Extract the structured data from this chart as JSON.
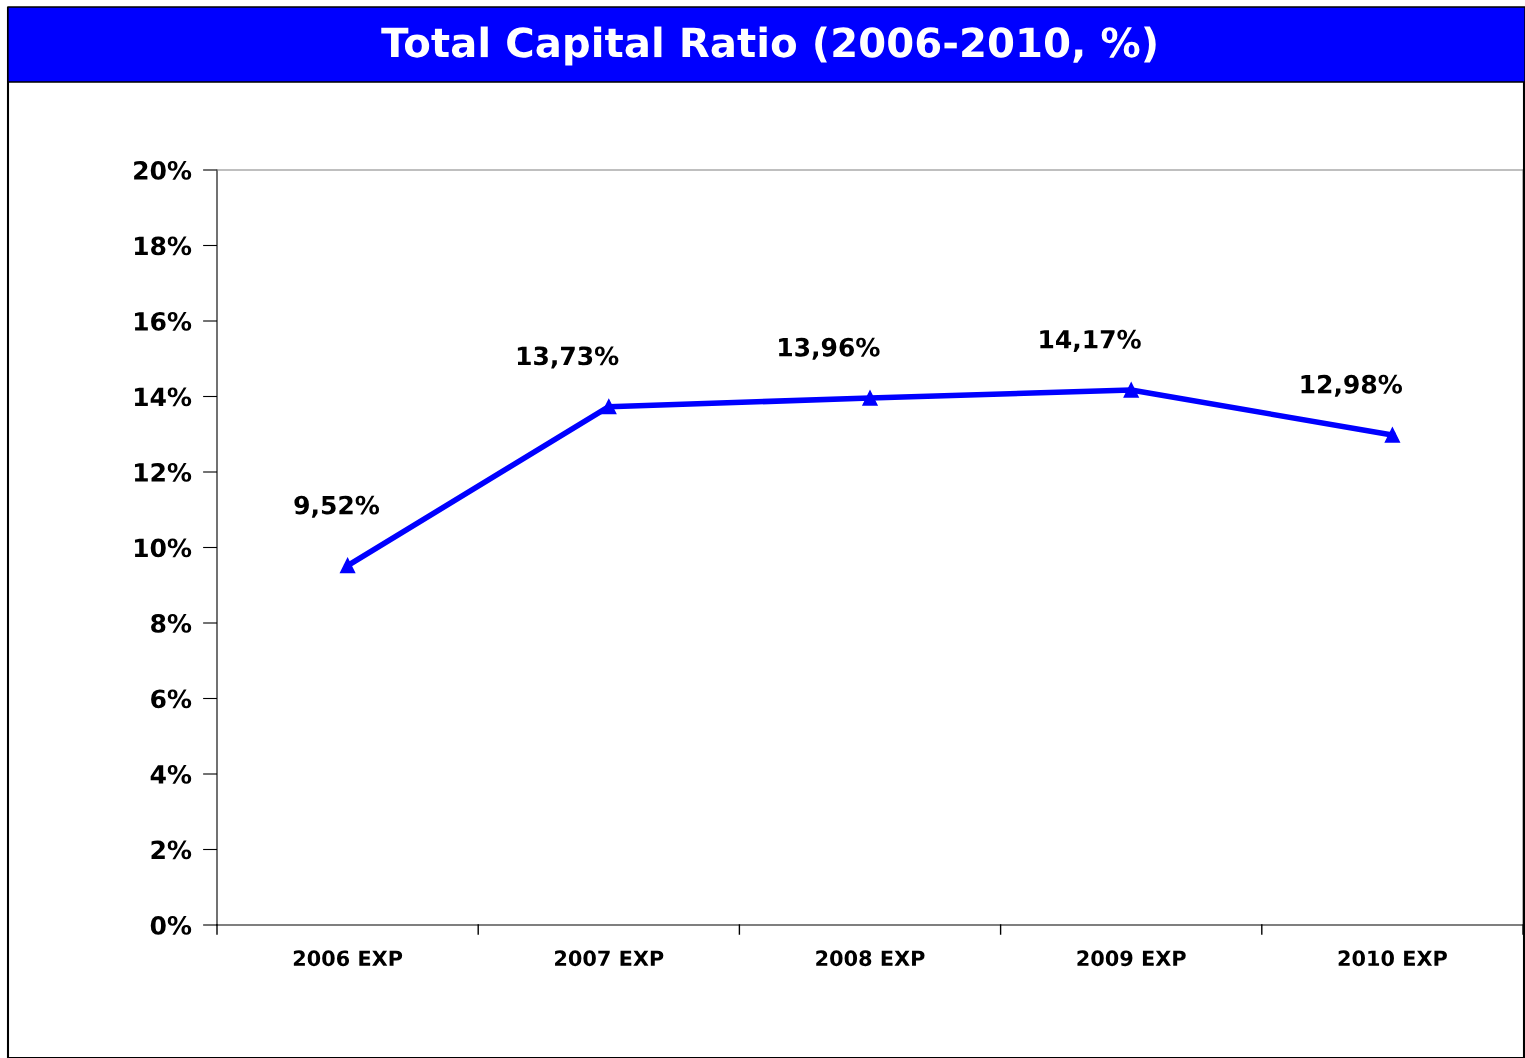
{
  "chart_data": {
    "type": "line",
    "title": "Total Capital Ratio (2006-2010, %)",
    "categories": [
      "2006 EXP",
      "2007 EXP",
      "2008 EXP",
      "2009 EXP",
      "2010 EXP"
    ],
    "series": [
      {
        "color": "#0000ff",
        "values": [
          9.52,
          13.73,
          13.96,
          14.17,
          12.98
        ],
        "value_labels": [
          "9,52%",
          "13,73%",
          "13,96%",
          "14,17%",
          "12,98%"
        ]
      }
    ],
    "ylim": [
      0,
      20
    ],
    "yticks": [
      {
        "value": 0,
        "label": "0%"
      },
      {
        "value": 2,
        "label": "2%"
      },
      {
        "value": 4,
        "label": "4%"
      },
      {
        "value": 6,
        "label": "6%"
      },
      {
        "value": 8,
        "label": "8%"
      },
      {
        "value": 10,
        "label": "10%"
      },
      {
        "value": 12,
        "label": "12%"
      },
      {
        "value": 14,
        "label": "14%"
      },
      {
        "value": 16,
        "label": "16%"
      },
      {
        "value": 18,
        "label": "18%"
      },
      {
        "value": 20,
        "label": "20%"
      }
    ],
    "marker": "triangle",
    "line_style": "solid",
    "grid": false,
    "legend": false
  }
}
